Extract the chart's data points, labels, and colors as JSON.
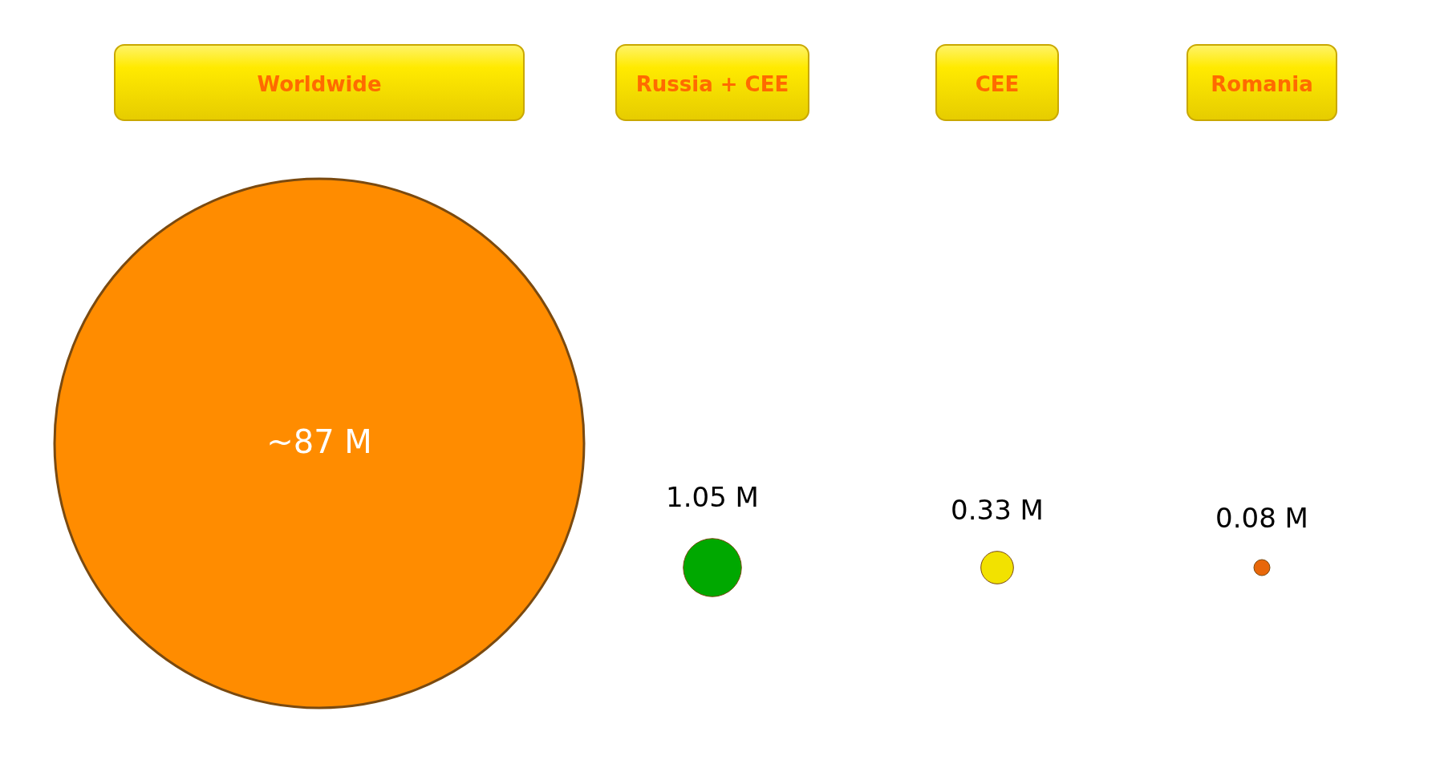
{
  "chart_data": {
    "type": "other",
    "categories": [
      "Worldwide",
      "Russia + CEE",
      "CEE",
      "Romania"
    ],
    "values": [
      87,
      1.05,
      0.33,
      0.08
    ],
    "value_labels": [
      "~87 M",
      "1.05 M",
      "0.33 M",
      "0.08 M"
    ],
    "colors": [
      "#ff8c00",
      "#00a800",
      "#f2e200",
      "#e8670a"
    ]
  }
}
